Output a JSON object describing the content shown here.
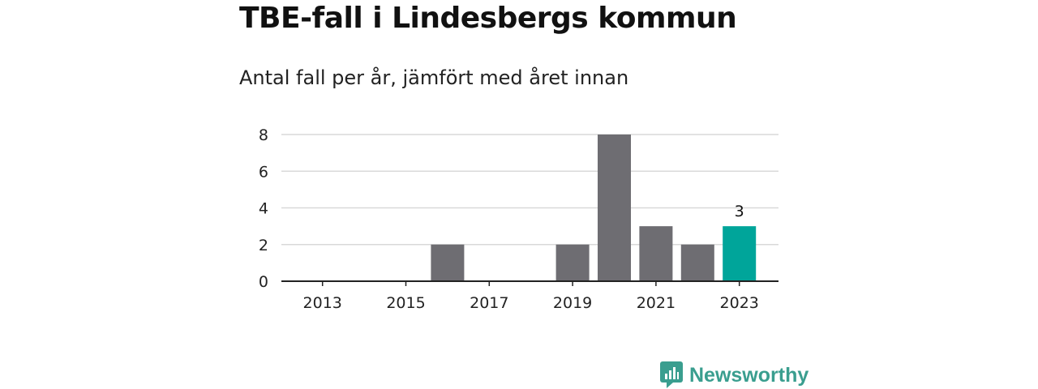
{
  "title": "TBE-fall i Lindesbergs kommun",
  "subtitle": "Antal fall per år, jämfört med året innan",
  "brand": {
    "name": "Newsworthy",
    "icon": "newsworthy-logo-icon",
    "color": "#3a9e8f"
  },
  "chart_data": {
    "type": "bar",
    "categories": [
      "2013",
      "2014",
      "2015",
      "2016",
      "2017",
      "2018",
      "2019",
      "2020",
      "2021",
      "2022",
      "2023"
    ],
    "values": [
      0,
      0,
      0,
      2,
      0,
      0,
      2,
      8,
      3,
      2,
      3
    ],
    "x_tick_labels": [
      "2013",
      "2015",
      "2017",
      "2019",
      "2021",
      "2023"
    ],
    "y_ticks": [
      0,
      2,
      4,
      6,
      8
    ],
    "ylim": [
      0,
      8
    ],
    "grid": true,
    "highlight": {
      "category": "2023",
      "label": "3"
    },
    "colors": {
      "bar": "#6e6d72",
      "highlight": "#00a59a",
      "grid": "#d9d9d9",
      "axis": "#222222"
    }
  }
}
